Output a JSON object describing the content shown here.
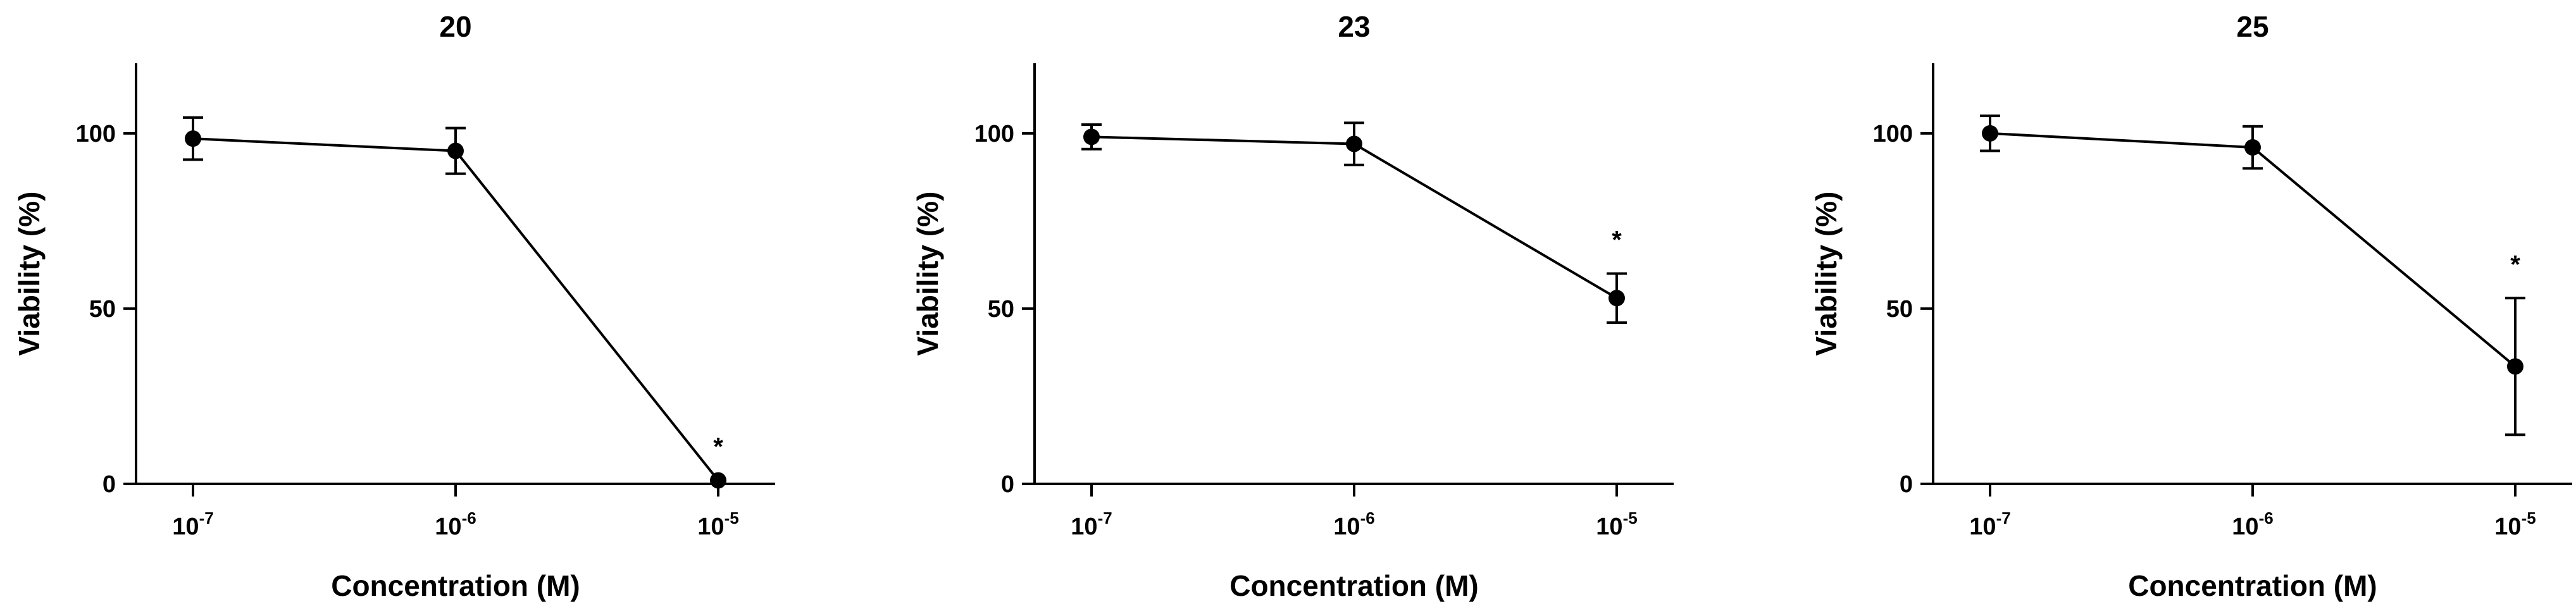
{
  "chart_data": [
    {
      "type": "line",
      "title": "20",
      "xlabel": "Concentration (M)",
      "ylabel": "Viability (%)",
      "x_scale": "log",
      "x_ticks": [
        {
          "base": "10",
          "exp": "-7"
        },
        {
          "base": "10",
          "exp": "-6"
        },
        {
          "base": "10",
          "exp": "-5"
        }
      ],
      "x": [
        1e-07,
        1e-06,
        1e-05
      ],
      "y": [
        98.5,
        95,
        1
      ],
      "y_err": [
        6,
        6.5,
        0
      ],
      "ylim": [
        0,
        120
      ],
      "y_ticks": [
        "0",
        "50",
        "100"
      ],
      "annotations": [
        {
          "x": 1e-05,
          "text": "*"
        }
      ],
      "grid": false,
      "color": "#000000"
    },
    {
      "type": "line",
      "title": "23",
      "xlabel": "Concentration (M)",
      "ylabel": "Viability (%)",
      "x_scale": "log",
      "x_ticks": [
        {
          "base": "10",
          "exp": "-7"
        },
        {
          "base": "10",
          "exp": "-6"
        },
        {
          "base": "10",
          "exp": "-5"
        }
      ],
      "x": [
        1e-07,
        1e-06,
        1e-05
      ],
      "y": [
        99,
        97,
        53
      ],
      "y_err": [
        3.5,
        6,
        7
      ],
      "ylim": [
        0,
        120
      ],
      "y_ticks": [
        "0",
        "50",
        "100"
      ],
      "annotations": [
        {
          "x": 1e-05,
          "text": "*"
        }
      ],
      "grid": false,
      "color": "#000000"
    },
    {
      "type": "line",
      "title": "25",
      "xlabel": "Concentration (M)",
      "ylabel": "Viability (%)",
      "x_scale": "log",
      "x_ticks": [
        {
          "base": "10",
          "exp": "-7"
        },
        {
          "base": "10",
          "exp": "-6"
        },
        {
          "base": "10",
          "exp": "-5"
        }
      ],
      "x": [
        1e-07,
        1e-06,
        1e-05
      ],
      "y": [
        100,
        96,
        33.5
      ],
      "y_err": [
        5,
        6,
        19.5
      ],
      "ylim": [
        0,
        120
      ],
      "y_ticks": [
        "0",
        "50",
        "100"
      ],
      "annotations": [
        {
          "x": 1e-05,
          "text": "*"
        }
      ],
      "grid": false,
      "color": "#000000"
    }
  ]
}
